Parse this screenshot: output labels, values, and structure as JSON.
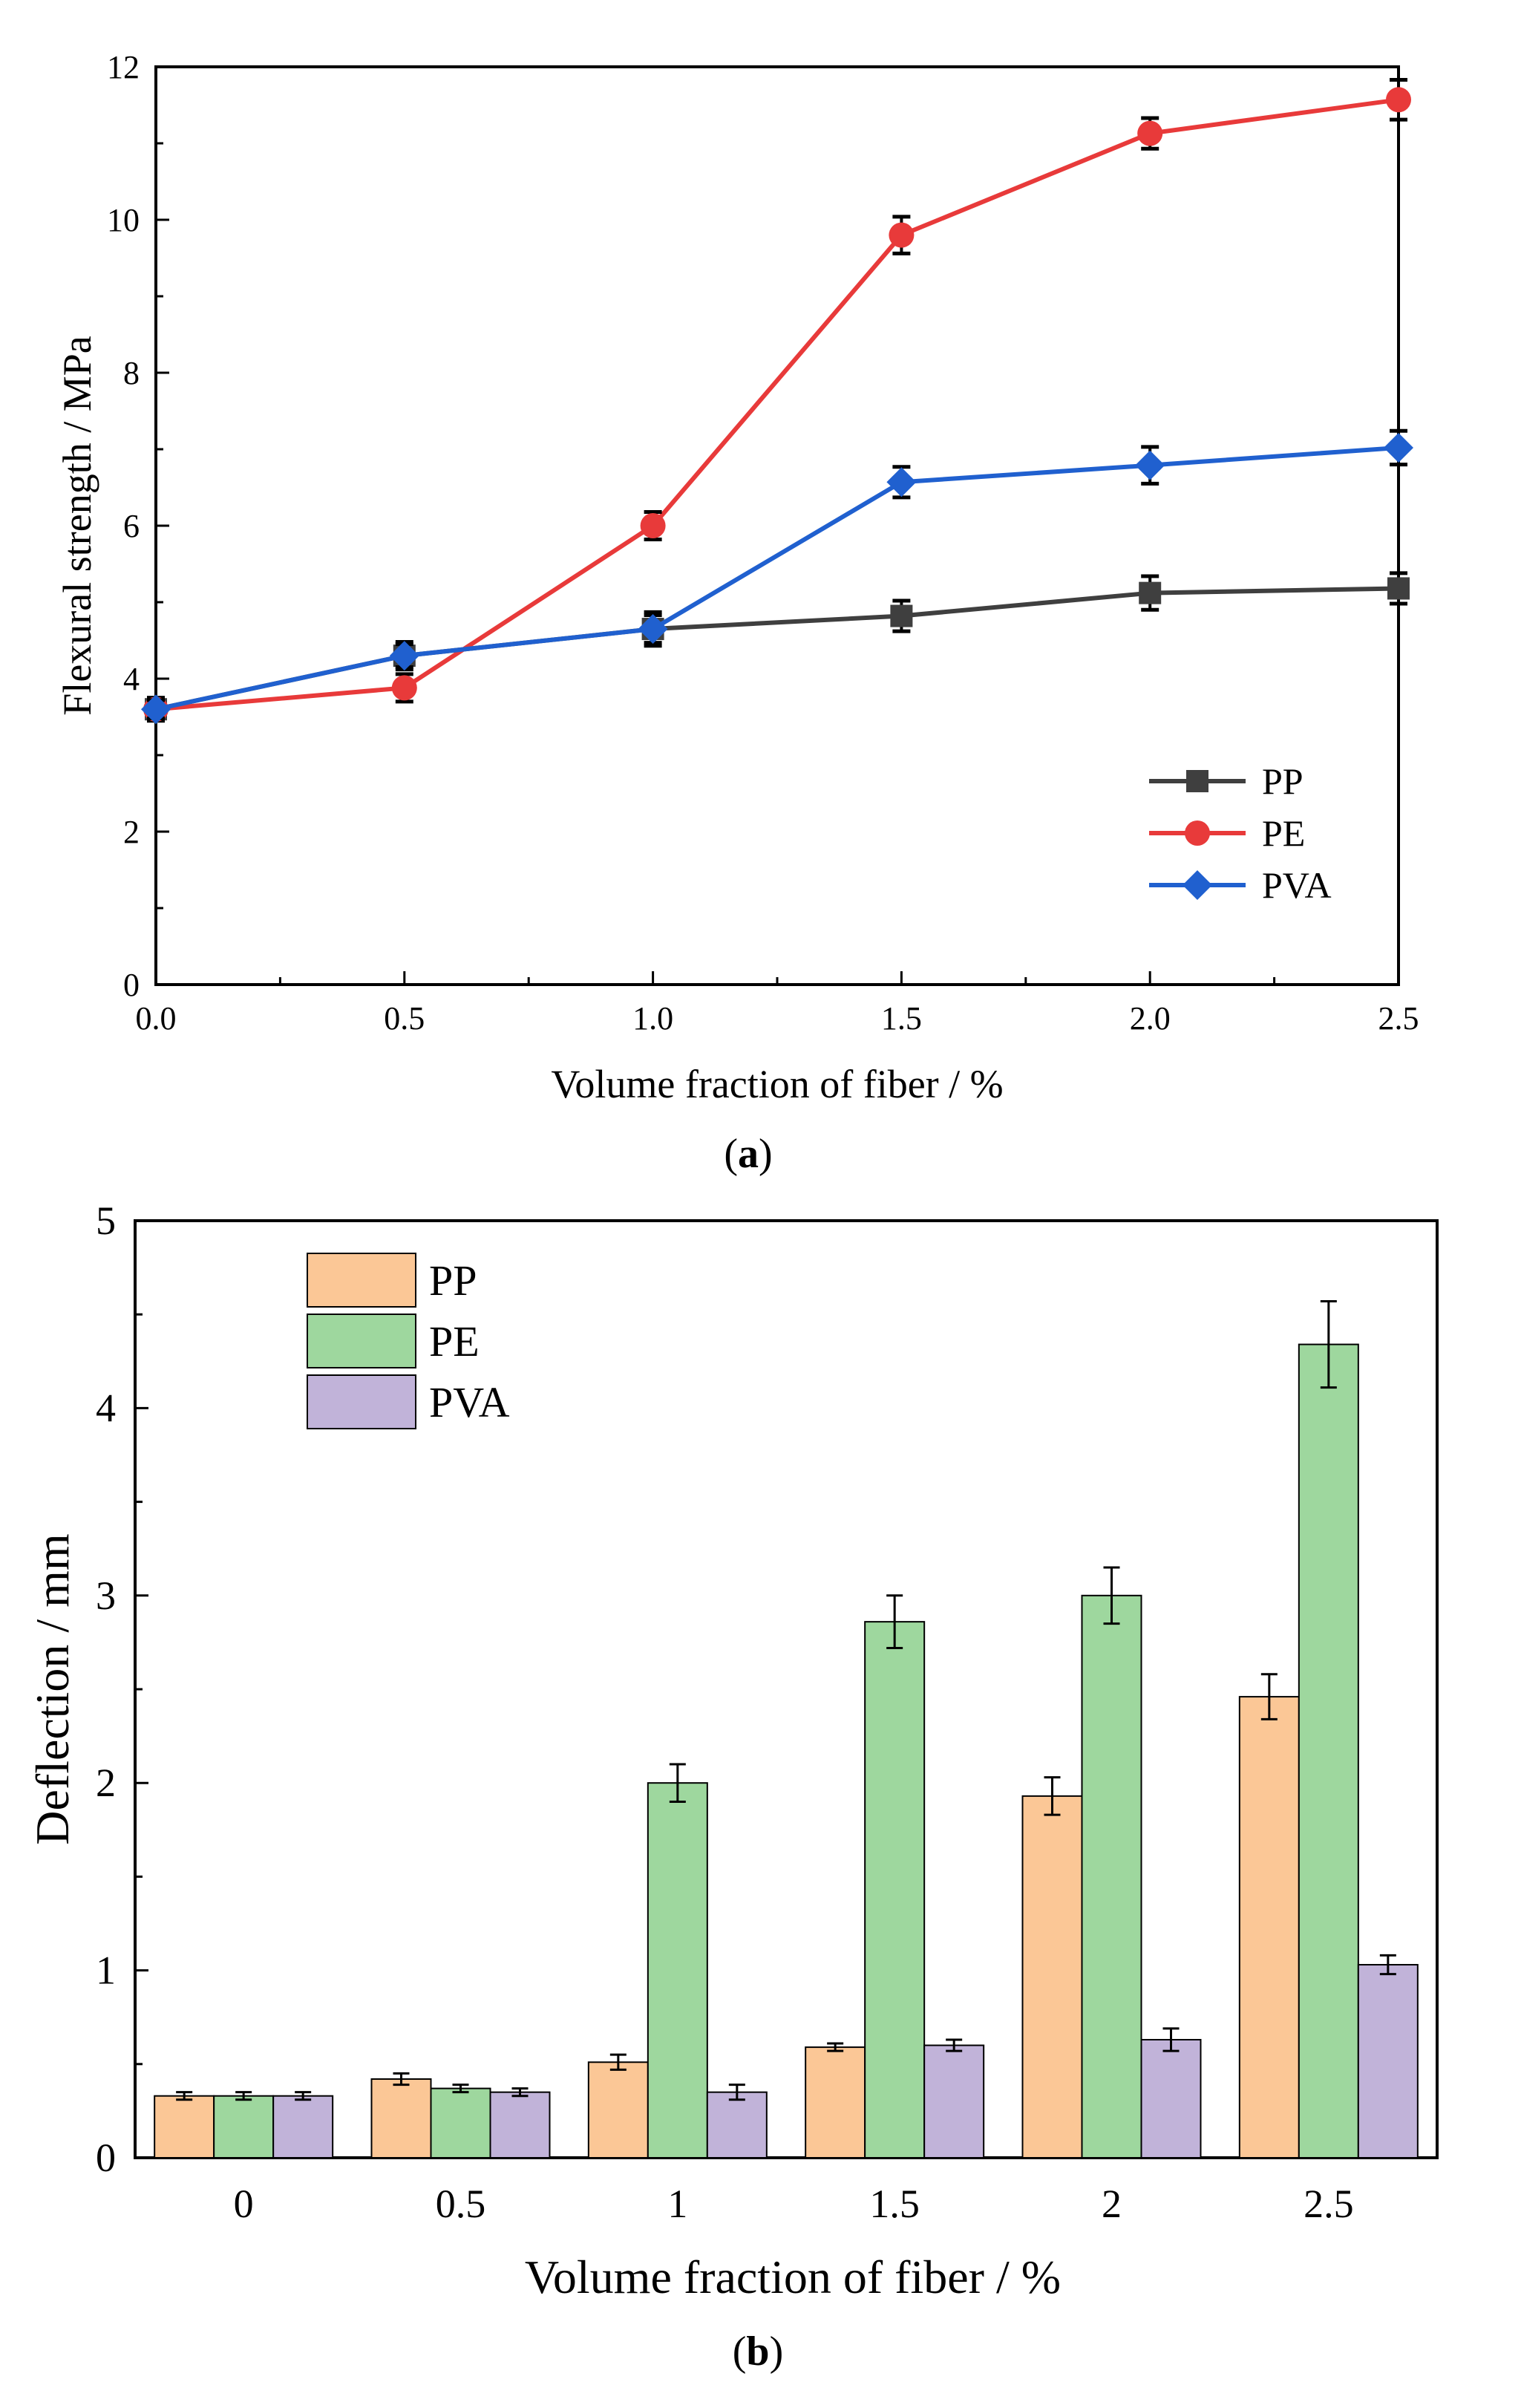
{
  "chart_data": [
    {
      "type": "line",
      "caption_label": "a",
      "xlabel": "Volume fraction of fiber / %",
      "ylabel": "Flexural strength / MPa",
      "x": [
        0.0,
        0.5,
        1.0,
        1.5,
        2.0,
        2.5
      ],
      "xticks": [
        "0.0",
        "0.5",
        "1.0",
        "1.5",
        "2.0",
        "2.5"
      ],
      "xlim": [
        0,
        2.5
      ],
      "yticks": [
        "0",
        "2",
        "4",
        "6",
        "8",
        "10",
        "12"
      ],
      "ylim": [
        0,
        12
      ],
      "legend_position": "bottom-right",
      "series": [
        {
          "name": "PP",
          "color": "#3f3f3f",
          "marker": "square",
          "values": [
            3.6,
            4.3,
            4.65,
            4.82,
            5.12,
            5.18
          ],
          "errors": [
            0.15,
            0.18,
            0.22,
            0.2,
            0.22,
            0.2
          ]
        },
        {
          "name": "PE",
          "color": "#e83a3a",
          "marker": "circle",
          "values": [
            3.6,
            3.88,
            6.0,
            9.8,
            11.13,
            11.57
          ],
          "errors": [
            0.15,
            0.18,
            0.18,
            0.24,
            0.2,
            0.26
          ]
        },
        {
          "name": "PVA",
          "color": "#2060cf",
          "marker": "diamond",
          "values": [
            3.6,
            4.3,
            4.65,
            6.57,
            6.79,
            7.02
          ],
          "errors": [
            0.12,
            0.15,
            0.18,
            0.2,
            0.24,
            0.22
          ]
        }
      ]
    },
    {
      "type": "bar",
      "caption_label": "b",
      "xlabel": "Volume fraction of fiber / %",
      "ylabel": "Deflection / mm",
      "categories": [
        "0",
        "0.5",
        "1",
        "1.5",
        "2",
        "2.5"
      ],
      "yticks": [
        "0",
        "1",
        "2",
        "3",
        "4",
        "5"
      ],
      "ylim": [
        0,
        5
      ],
      "legend_position": "top-left",
      "series": [
        {
          "name": "PP",
          "color": "#fbc796",
          "values": [
            0.33,
            0.42,
            0.51,
            0.59,
            1.93,
            2.46
          ],
          "errors": [
            0.02,
            0.03,
            0.04,
            0.02,
            0.1,
            0.12
          ]
        },
        {
          "name": "PE",
          "color": "#9ed79e",
          "values": [
            0.33,
            0.37,
            2.0,
            2.86,
            3.0,
            4.34
          ],
          "errors": [
            0.02,
            0.02,
            0.1,
            0.14,
            0.15,
            0.23
          ]
        },
        {
          "name": "PVA",
          "color": "#c1b3d9",
          "values": [
            0.33,
            0.35,
            0.35,
            0.6,
            0.63,
            1.03
          ],
          "errors": [
            0.02,
            0.02,
            0.04,
            0.03,
            0.06,
            0.05
          ]
        }
      ]
    }
  ]
}
